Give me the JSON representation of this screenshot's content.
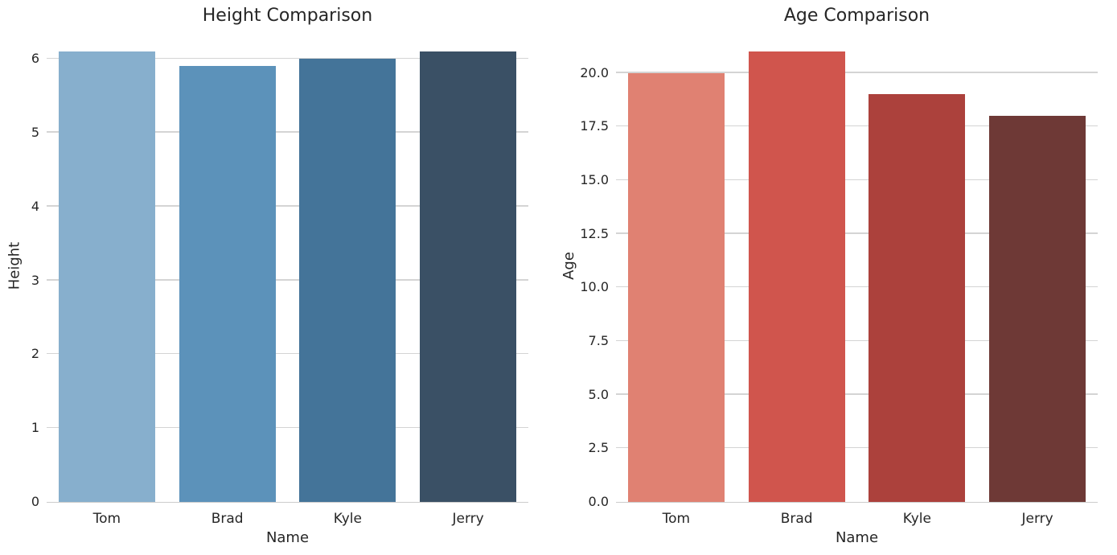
{
  "colors": {
    "background": "#ffffff",
    "grid": "#d4d4d4",
    "axis_line": "#cccccc",
    "text": "#262626"
  },
  "chart_data": [
    {
      "type": "bar",
      "title": "Height Comparison",
      "xlabel": "Name",
      "ylabel": "Height",
      "categories": [
        "Tom",
        "Brad",
        "Kyle",
        "Jerry"
      ],
      "values": [
        6.1,
        5.9,
        6.0,
        6.1
      ],
      "ylim": [
        0,
        6.405
      ],
      "grid": true,
      "legend_position": "none",
      "yticks": [
        {
          "value": 0,
          "label": "0"
        },
        {
          "value": 1,
          "label": "1"
        },
        {
          "value": 2,
          "label": "2"
        },
        {
          "value": 3,
          "label": "3"
        },
        {
          "value": 4,
          "label": "4"
        },
        {
          "value": 5,
          "label": "5"
        },
        {
          "value": 6,
          "label": "6"
        }
      ],
      "bar_colors": [
        "#87afcd",
        "#5c92ba",
        "#447499",
        "#3a5065"
      ]
    },
    {
      "type": "bar",
      "title": "Age Comparison",
      "xlabel": "Name",
      "ylabel": "Age",
      "categories": [
        "Tom",
        "Brad",
        "Kyle",
        "Jerry"
      ],
      "values": [
        20,
        21,
        19,
        18
      ],
      "ylim": [
        0,
        22.05
      ],
      "grid": true,
      "legend_position": "none",
      "yticks": [
        {
          "value": 0,
          "label": "0.0"
        },
        {
          "value": 2.5,
          "label": "2.5"
        },
        {
          "value": 5,
          "label": "5.0"
        },
        {
          "value": 7.5,
          "label": "7.5"
        },
        {
          "value": 10,
          "label": "10.0"
        },
        {
          "value": 12.5,
          "label": "12.5"
        },
        {
          "value": 15,
          "label": "15.0"
        },
        {
          "value": 17.5,
          "label": "17.5"
        },
        {
          "value": 20,
          "label": "20.0"
        }
      ],
      "bar_colors": [
        "#e08172",
        "#d0554d",
        "#ac413c",
        "#6e3936"
      ]
    }
  ]
}
